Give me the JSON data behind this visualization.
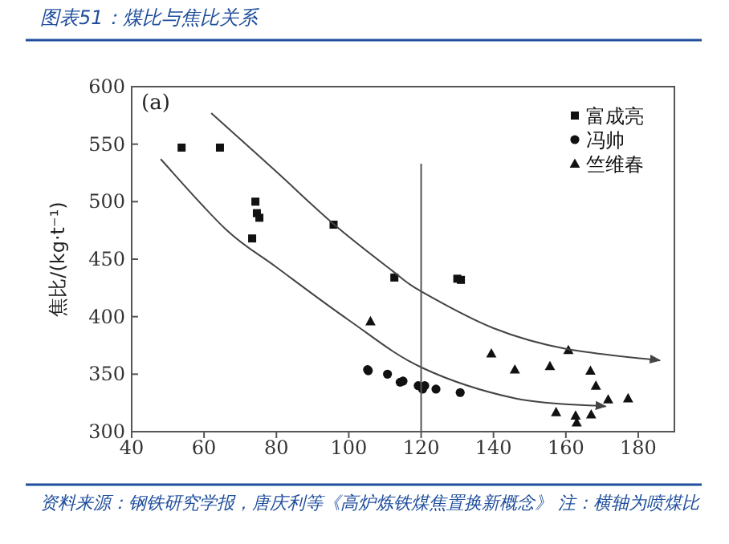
{
  "chart_data": {
    "type": "scatter",
    "title": "图表51：煤比与焦比关系",
    "ylabel": "焦比/(kg·t⁻¹)",
    "annotations": [
      "(a)",
      "资料来源：钢铁研究学报，唐庆利等《高炉炼铁煤焦置换新概念》 注：横轴为喷煤比"
    ],
    "xlim": [
      40,
      190
    ],
    "xticks": [
      40,
      60,
      80,
      100,
      120,
      140,
      160,
      180
    ],
    "ylim": [
      300,
      600
    ],
    "yticks": [
      300,
      350,
      400,
      450,
      500,
      550,
      600
    ],
    "legend": "top right",
    "series": [
      {
        "name": "富成亮",
        "marker": "square",
        "color": "#111111",
        "x": [
          53.8,
          64.4,
          74.2,
          74.6,
          75.3,
          73.3,
          95.8,
          112.6,
          130,
          131
        ],
        "values": [
          547,
          547,
          500,
          490,
          486,
          468,
          480,
          434,
          433,
          432
        ]
      },
      {
        "name": "冯帅",
        "marker": "circle",
        "color": "#111111",
        "x": [
          105.2,
          105.4,
          110.7,
          114.2,
          115,
          119.2,
          120.4,
          121,
          124.1,
          130.8
        ],
        "values": [
          354,
          353,
          350,
          343,
          344,
          340,
          337,
          340,
          337,
          334
        ]
      },
      {
        "name": "竺维春",
        "marker": "triangle",
        "color": "#111111",
        "x": [
          106,
          139.4,
          145.9,
          155.6,
          160.7,
          166.8,
          168.3,
          171.7,
          177.2,
          157.3,
          162.7,
          163,
          167
        ],
        "values": [
          396,
          368,
          354,
          357,
          371,
          353,
          340,
          328,
          329,
          317,
          314,
          308,
          315
        ]
      },
      {
        "type": "line",
        "color": "#444444",
        "x": [
          62,
          80,
          96,
          112,
          120,
          140,
          160,
          186
        ],
        "values": [
          577,
          526,
          480,
          440,
          422,
          390,
          372,
          362
        ]
      },
      {
        "type": "line",
        "color": "#444444",
        "x": [
          48,
          66,
          80,
          100,
          120,
          146,
          171
        ],
        "values": [
          537,
          476,
          443,
          397,
          356,
          329,
          322
        ]
      },
      {
        "type": "line",
        "color": "#555555",
        "x": [
          120,
          120
        ],
        "values": [
          300,
          533
        ]
      }
    ]
  }
}
